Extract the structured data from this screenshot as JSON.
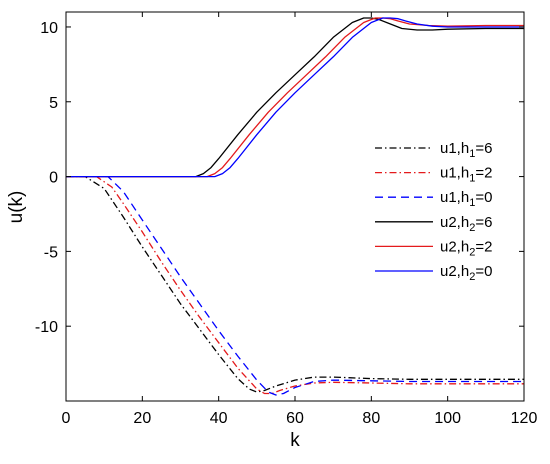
{
  "chart_data": {
    "type": "line",
    "title": "",
    "xlabel": "k",
    "ylabel": "u(k)",
    "xlim": [
      0,
      120
    ],
    "ylim": [
      -15,
      11
    ],
    "xticks": [
      0,
      20,
      40,
      60,
      80,
      100,
      120
    ],
    "xtick_labels": [
      "0",
      "20",
      "40",
      "60",
      "80",
      "100",
      "120"
    ],
    "yticks": [
      -10,
      -5,
      0,
      5,
      10
    ],
    "ytick_labels": [
      "-10",
      "-5",
      "0",
      "5",
      "10"
    ],
    "grid": false,
    "legend_position": "right",
    "series": [
      {
        "name": "u1,h1=6",
        "legend_main": "u1,h",
        "legend_sub": "1",
        "legend_tail": "=6",
        "color": "#000000",
        "dash": "dashdot",
        "x": [
          0,
          5,
          10,
          15,
          20,
          25,
          30,
          35,
          40,
          45,
          48,
          50,
          52,
          55,
          60,
          65,
          70,
          80,
          90,
          100,
          110,
          120
        ],
        "y": [
          0,
          0,
          -0.8,
          -2.7,
          -4.7,
          -6.6,
          -8.5,
          -10.2,
          -11.9,
          -13.5,
          -14.2,
          -14.4,
          -14.3,
          -14,
          -13.6,
          -13.4,
          -13.4,
          -13.5,
          -13.55,
          -13.55,
          -13.55,
          -13.55
        ]
      },
      {
        "name": "u1,h1=2",
        "legend_main": "u1,h",
        "legend_sub": "1",
        "legend_tail": "=2",
        "color": "#e41a1c",
        "dash": "dashdot",
        "x": [
          0,
          8,
          12,
          15,
          20,
          25,
          30,
          35,
          40,
          45,
          50,
          52,
          54,
          56,
          60,
          65,
          70,
          80,
          90,
          100,
          110,
          120
        ],
        "y": [
          0,
          0,
          -0.7,
          -1.8,
          -3.7,
          -5.7,
          -7.6,
          -9.4,
          -11.1,
          -12.8,
          -14.2,
          -14.5,
          -14.5,
          -14.3,
          -14,
          -13.8,
          -13.75,
          -13.8,
          -13.85,
          -13.85,
          -13.85,
          -13.85
        ]
      },
      {
        "name": "u1,h1=0",
        "legend_main": "u1,h",
        "legend_sub": "1",
        "legend_tail": "=0",
        "color": "#0000ff",
        "dash": "dash",
        "x": [
          0,
          11,
          15,
          20,
          25,
          30,
          35,
          40,
          45,
          50,
          53,
          55,
          57,
          60,
          65,
          70,
          80,
          90,
          100,
          110,
          120
        ],
        "y": [
          0,
          0,
          -1,
          -2.9,
          -4.8,
          -6.7,
          -8.5,
          -10.3,
          -12,
          -13.6,
          -14.4,
          -14.6,
          -14.5,
          -14.1,
          -13.7,
          -13.6,
          -13.65,
          -13.7,
          -13.7,
          -13.7,
          -13.7
        ]
      },
      {
        "name": "u2,h2=6",
        "legend_main": "u2,h",
        "legend_sub": "2",
        "legend_tail": "=6",
        "color": "#000000",
        "dash": "solid",
        "x": [
          0,
          34,
          36,
          38,
          40,
          45,
          50,
          55,
          60,
          65,
          70,
          75,
          78,
          80,
          82,
          85,
          88,
          92,
          96,
          100,
          110,
          120
        ],
        "y": [
          0,
          0,
          0.2,
          0.6,
          1.2,
          2.8,
          4.3,
          5.6,
          6.8,
          8,
          9.3,
          10.3,
          10.6,
          10.6,
          10.5,
          10.2,
          9.9,
          9.8,
          9.8,
          9.85,
          9.9,
          9.9
        ]
      },
      {
        "name": "u2,h2=2",
        "legend_main": "u2,h",
        "legend_sub": "2",
        "legend_tail": "=2",
        "color": "#e41a1c",
        "dash": "solid",
        "x": [
          0,
          37,
          39,
          41,
          43,
          48,
          53,
          58,
          63,
          68,
          73,
          78,
          81,
          83,
          85,
          87,
          90,
          95,
          100,
          110,
          120
        ],
        "y": [
          0,
          0,
          0.2,
          0.6,
          1.2,
          2.8,
          4.3,
          5.6,
          6.8,
          8,
          9.3,
          10.3,
          10.6,
          10.6,
          10.55,
          10.4,
          10.2,
          10.1,
          10.05,
          10.1,
          10.1
        ]
      },
      {
        "name": "u2,h2=0",
        "legend_main": "u2,h",
        "legend_sub": "2",
        "legend_tail": "=0",
        "color": "#0000ff",
        "dash": "solid",
        "x": [
          0,
          39,
          41,
          43,
          45,
          50,
          55,
          60,
          65,
          70,
          75,
          80,
          83,
          85,
          87,
          89,
          92,
          96,
          100,
          110,
          120
        ],
        "y": [
          0,
          0,
          0.2,
          0.6,
          1.2,
          2.8,
          4.3,
          5.6,
          6.8,
          8,
          9.3,
          10.3,
          10.6,
          10.6,
          10.55,
          10.4,
          10.2,
          10.05,
          10,
          10,
          10
        ]
      }
    ]
  }
}
